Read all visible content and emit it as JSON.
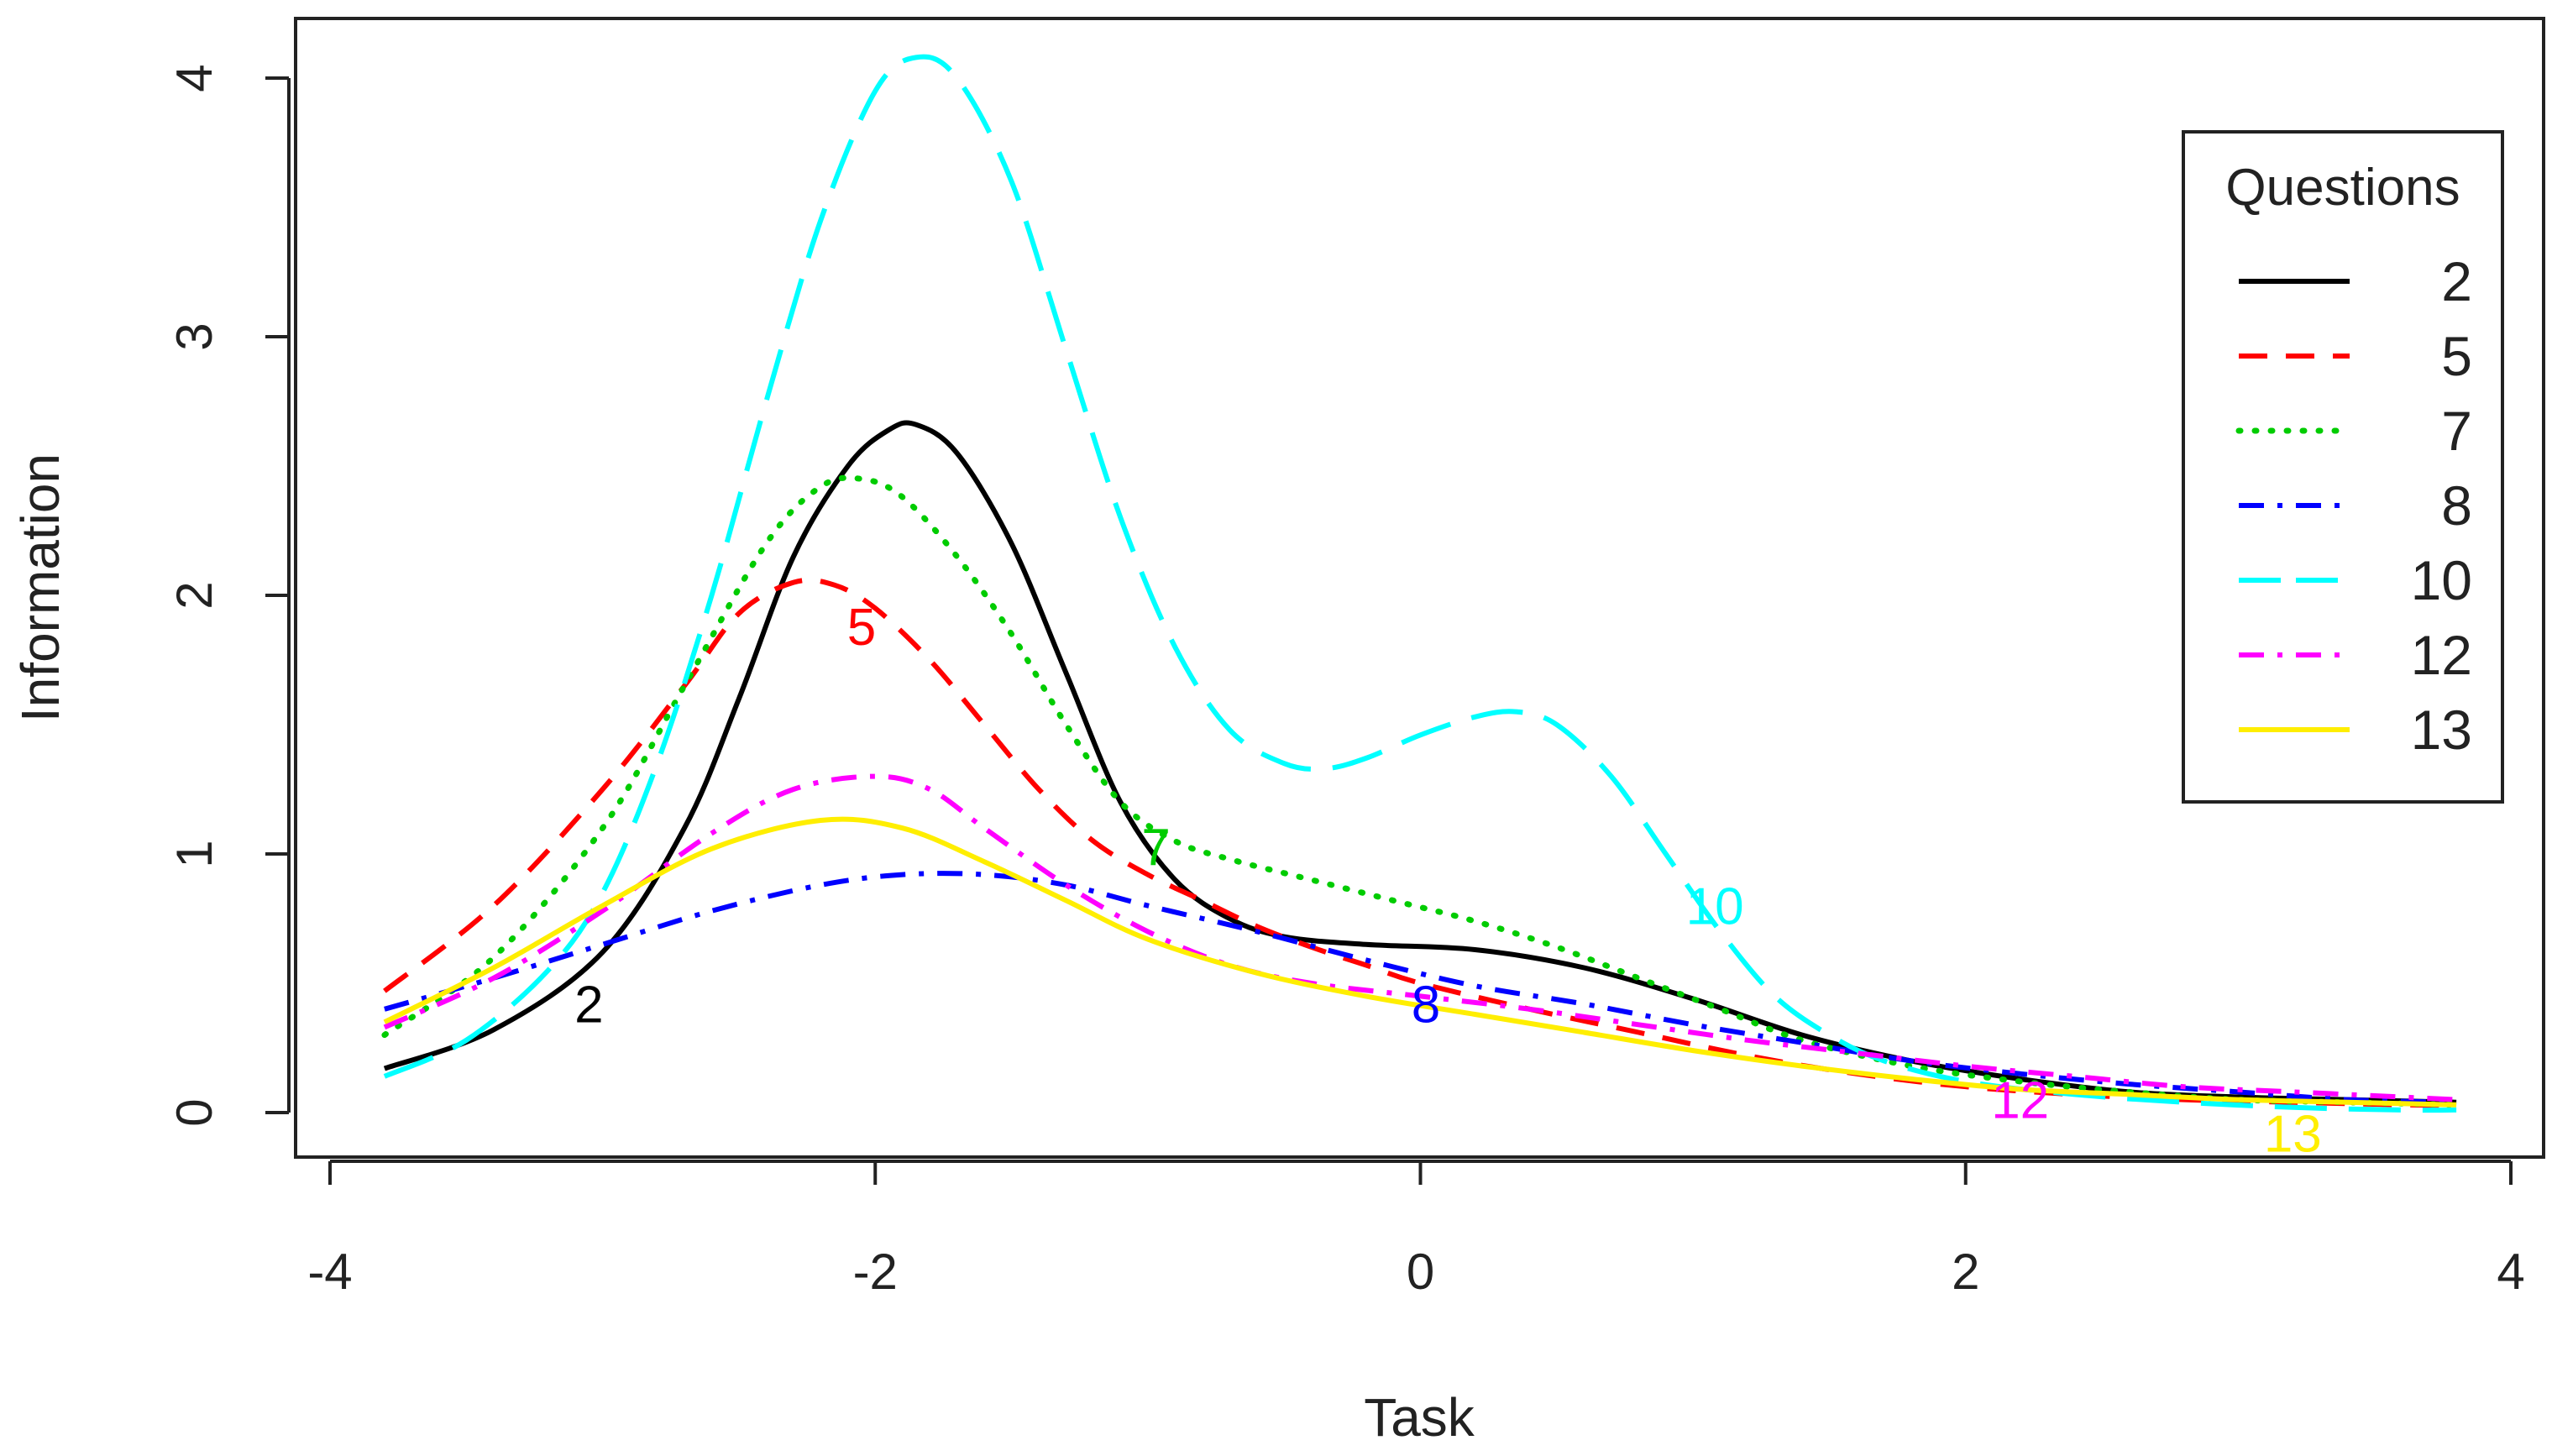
{
  "chart_data": {
    "type": "line",
    "xlabel": "Task",
    "ylabel": "Information",
    "xlim": [
      -4,
      4
    ],
    "ylim": [
      0,
      4.2
    ],
    "xticks": [
      -4,
      -2,
      0,
      2,
      4
    ],
    "yticks": [
      0,
      1,
      2,
      3,
      4
    ],
    "grid": false,
    "legend": {
      "title": "Questions",
      "position": "top-right"
    },
    "series": [
      {
        "name": "2",
        "color": "#000000",
        "dash": "solid",
        "label": "2",
        "label_at": [
          -3.05,
          0.42
        ],
        "x": [
          -3.8,
          -3.4,
          -3.0,
          -2.7,
          -2.5,
          -2.3,
          -2.1,
          -1.95,
          -1.85,
          -1.7,
          -1.5,
          -1.3,
          -1.1,
          -0.9,
          -0.7,
          -0.5,
          -0.2,
          0.2,
          0.6,
          1.0,
          1.4,
          1.8,
          2.2,
          2.6,
          3.0,
          3.4,
          3.8
        ],
        "y": [
          0.17,
          0.32,
          0.62,
          1.1,
          1.6,
          2.15,
          2.5,
          2.64,
          2.66,
          2.55,
          2.2,
          1.7,
          1.2,
          0.9,
          0.75,
          0.68,
          0.65,
          0.63,
          0.56,
          0.44,
          0.3,
          0.2,
          0.13,
          0.08,
          0.06,
          0.05,
          0.04
        ]
      },
      {
        "name": "5",
        "color": "#ff0000",
        "dash": "dashed",
        "label": "5",
        "label_at": [
          -2.05,
          1.88
        ],
        "x": [
          -3.8,
          -3.4,
          -3.0,
          -2.7,
          -2.5,
          -2.3,
          -2.15,
          -2.0,
          -1.8,
          -1.6,
          -1.4,
          -1.2,
          -1.0,
          -0.8,
          -0.6,
          -0.4,
          -0.2,
          0.0,
          0.4,
          0.8,
          1.2,
          1.6,
          2.0,
          2.4,
          2.8,
          3.2,
          3.6,
          3.8
        ],
        "y": [
          0.47,
          0.8,
          1.25,
          1.65,
          1.93,
          2.05,
          2.04,
          1.95,
          1.75,
          1.5,
          1.25,
          1.05,
          0.92,
          0.82,
          0.72,
          0.64,
          0.57,
          0.5,
          0.4,
          0.31,
          0.22,
          0.15,
          0.1,
          0.07,
          0.05,
          0.04,
          0.03,
          0.03
        ]
      },
      {
        "name": "7",
        "color": "#00cc00",
        "dash": "dotted",
        "label": "7",
        "label_at": [
          -0.97,
          1.03
        ],
        "x": [
          -3.8,
          -3.4,
          -3.0,
          -2.7,
          -2.4,
          -2.2,
          -2.05,
          -1.9,
          -1.7,
          -1.5,
          -1.3,
          -1.1,
          -0.9,
          -0.7,
          -0.4,
          -0.1,
          0.2,
          0.5,
          0.8,
          1.1,
          1.4,
          1.8,
          2.2,
          2.6,
          3.0,
          3.4,
          3.8
        ],
        "y": [
          0.3,
          0.6,
          1.1,
          1.65,
          2.2,
          2.42,
          2.45,
          2.38,
          2.15,
          1.85,
          1.5,
          1.2,
          1.05,
          0.98,
          0.9,
          0.82,
          0.74,
          0.64,
          0.52,
          0.4,
          0.28,
          0.18,
          0.12,
          0.08,
          0.05,
          0.04,
          0.03
        ]
      },
      {
        "name": "8",
        "color": "#0000ff",
        "dash": "dashdot",
        "label": "8",
        "label_at": [
          0.02,
          0.42
        ],
        "x": [
          -3.8,
          -3.4,
          -3.0,
          -2.6,
          -2.2,
          -1.9,
          -1.6,
          -1.3,
          -1.0,
          -0.6,
          -0.2,
          0.2,
          0.6,
          1.0,
          1.4,
          1.8,
          2.2,
          2.6,
          3.0,
          3.4,
          3.8
        ],
        "y": [
          0.4,
          0.52,
          0.65,
          0.78,
          0.88,
          0.92,
          0.92,
          0.88,
          0.8,
          0.7,
          0.59,
          0.49,
          0.42,
          0.34,
          0.27,
          0.2,
          0.15,
          0.11,
          0.08,
          0.05,
          0.04
        ]
      },
      {
        "name": "10",
        "color": "#00ffff",
        "dash": "longdash",
        "label": "10",
        "label_at": [
          1.08,
          0.8
        ],
        "x": [
          -3.8,
          -3.5,
          -3.2,
          -3.0,
          -2.8,
          -2.6,
          -2.4,
          -2.2,
          -2.0,
          -1.85,
          -1.7,
          -1.5,
          -1.3,
          -1.1,
          -0.9,
          -0.7,
          -0.5,
          -0.35,
          -0.2,
          0.0,
          0.2,
          0.35,
          0.5,
          0.7,
          0.9,
          1.1,
          1.3,
          1.5,
          1.7,
          2.0,
          2.4,
          2.8,
          3.2,
          3.6,
          3.8
        ],
        "y": [
          0.14,
          0.28,
          0.55,
          0.85,
          1.35,
          2.0,
          2.75,
          3.45,
          3.95,
          4.08,
          4.0,
          3.6,
          2.95,
          2.3,
          1.8,
          1.48,
          1.35,
          1.33,
          1.37,
          1.46,
          1.53,
          1.55,
          1.5,
          1.3,
          1.0,
          0.7,
          0.45,
          0.3,
          0.2,
          0.12,
          0.07,
          0.04,
          0.02,
          0.01,
          0.01
        ]
      },
      {
        "name": "12",
        "color": "#ff00ff",
        "dash": "dashdot",
        "label": "12",
        "label_at": [
          2.2,
          0.05
        ],
        "x": [
          -3.8,
          -3.4,
          -3.0,
          -2.6,
          -2.3,
          -2.0,
          -1.8,
          -1.6,
          -1.3,
          -1.0,
          -0.7,
          -0.4,
          0.0,
          0.4,
          0.8,
          1.2,
          1.6,
          2.0,
          2.4,
          2.8,
          3.2,
          3.6,
          3.8
        ],
        "y": [
          0.33,
          0.52,
          0.78,
          1.08,
          1.25,
          1.3,
          1.25,
          1.1,
          0.88,
          0.7,
          0.57,
          0.5,
          0.45,
          0.4,
          0.34,
          0.28,
          0.23,
          0.18,
          0.14,
          0.1,
          0.08,
          0.06,
          0.05
        ]
      },
      {
        "name": "13",
        "color": "#ffee00",
        "dash": "solid",
        "label": "13",
        "label_at": [
          3.2,
          -0.08
        ],
        "x": [
          -3.8,
          -3.4,
          -3.0,
          -2.6,
          -2.2,
          -1.9,
          -1.6,
          -1.3,
          -1.0,
          -0.6,
          -0.2,
          0.2,
          0.6,
          1.0,
          1.4,
          1.8,
          2.2,
          2.6,
          3.0,
          3.4,
          3.8
        ],
        "y": [
          0.35,
          0.56,
          0.8,
          1.02,
          1.13,
          1.1,
          0.97,
          0.82,
          0.67,
          0.54,
          0.45,
          0.38,
          0.31,
          0.24,
          0.18,
          0.13,
          0.09,
          0.07,
          0.05,
          0.04,
          0.03
        ]
      }
    ]
  }
}
